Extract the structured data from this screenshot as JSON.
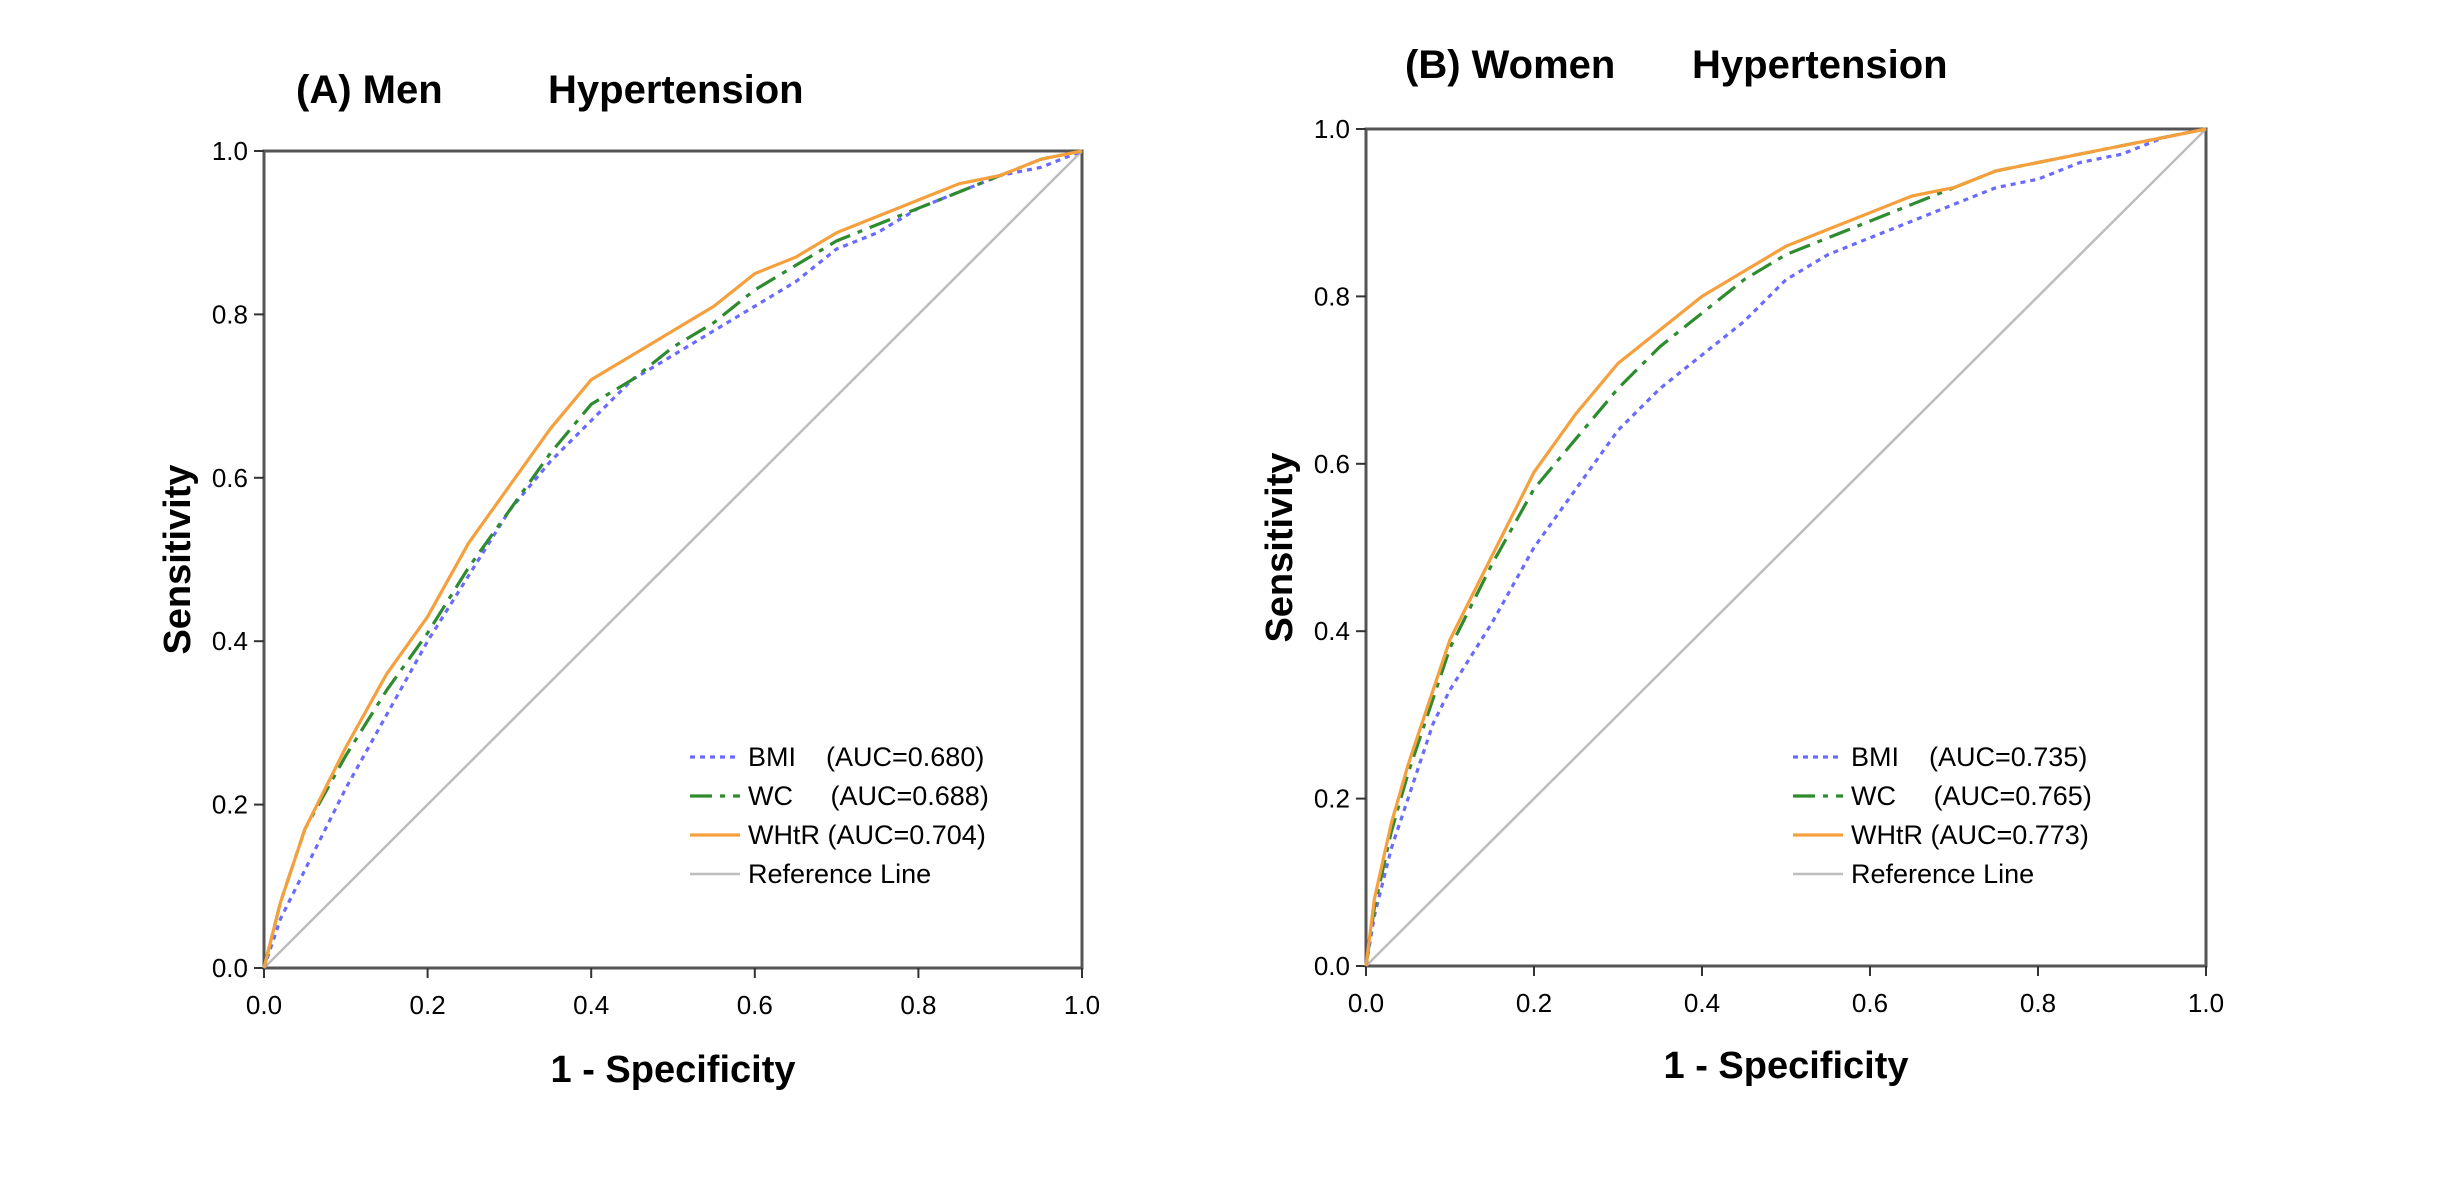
{
  "chart_data": [
    {
      "type": "line",
      "title_group": "(A) Men",
      "title_outcome": "Hypertension",
      "xlabel": "1 - Specificity",
      "ylabel": "Sensitivity",
      "xlim": [
        0,
        1
      ],
      "ylim": [
        0,
        1
      ],
      "xticks": [
        "0.0",
        "0.2",
        "0.4",
        "0.6",
        "0.8",
        "1.0"
      ],
      "yticks": [
        "0.0",
        "0.2",
        "0.4",
        "0.6",
        "0.8",
        "1.0"
      ],
      "legend_position": "bottom-right",
      "series": [
        {
          "name": "BMI",
          "legend": "BMI    (AUC=0.680)",
          "color": "#6a6aff",
          "dash": "dotted",
          "points": [
            [
              0,
              0
            ],
            [
              0.02,
              0.06
            ],
            [
              0.05,
              0.12
            ],
            [
              0.1,
              0.22
            ],
            [
              0.15,
              0.31
            ],
            [
              0.2,
              0.4
            ],
            [
              0.25,
              0.48
            ],
            [
              0.3,
              0.56
            ],
            [
              0.35,
              0.62
            ],
            [
              0.4,
              0.67
            ],
            [
              0.45,
              0.72
            ],
            [
              0.5,
              0.75
            ],
            [
              0.55,
              0.78
            ],
            [
              0.6,
              0.81
            ],
            [
              0.65,
              0.84
            ],
            [
              0.7,
              0.88
            ],
            [
              0.75,
              0.9
            ],
            [
              0.8,
              0.93
            ],
            [
              0.85,
              0.95
            ],
            [
              0.9,
              0.97
            ],
            [
              0.95,
              0.98
            ],
            [
              1,
              1
            ]
          ]
        },
        {
          "name": "WC",
          "legend": "WC     (AUC=0.688)",
          "color": "#2e8b2e",
          "dash": "dashdot",
          "points": [
            [
              0,
              0
            ],
            [
              0.02,
              0.08
            ],
            [
              0.05,
              0.17
            ],
            [
              0.1,
              0.26
            ],
            [
              0.15,
              0.34
            ],
            [
              0.2,
              0.41
            ],
            [
              0.25,
              0.49
            ],
            [
              0.3,
              0.56
            ],
            [
              0.35,
              0.63
            ],
            [
              0.4,
              0.69
            ],
            [
              0.45,
              0.72
            ],
            [
              0.5,
              0.76
            ],
            [
              0.55,
              0.79
            ],
            [
              0.6,
              0.83
            ],
            [
              0.65,
              0.86
            ],
            [
              0.7,
              0.89
            ],
            [
              0.75,
              0.91
            ],
            [
              0.8,
              0.93
            ],
            [
              0.85,
              0.95
            ],
            [
              0.9,
              0.97
            ],
            [
              0.95,
              0.99
            ],
            [
              1,
              1
            ]
          ]
        },
        {
          "name": "WHtR",
          "legend": "WHtR (AUC=0.704)",
          "color": "#f5a03c",
          "dash": "solid",
          "points": [
            [
              0,
              0
            ],
            [
              0.02,
              0.08
            ],
            [
              0.05,
              0.17
            ],
            [
              0.1,
              0.27
            ],
            [
              0.15,
              0.36
            ],
            [
              0.2,
              0.43
            ],
            [
              0.25,
              0.52
            ],
            [
              0.3,
              0.59
            ],
            [
              0.35,
              0.66
            ],
            [
              0.4,
              0.72
            ],
            [
              0.45,
              0.75
            ],
            [
              0.5,
              0.78
            ],
            [
              0.55,
              0.81
            ],
            [
              0.6,
              0.85
            ],
            [
              0.65,
              0.87
            ],
            [
              0.7,
              0.9
            ],
            [
              0.75,
              0.92
            ],
            [
              0.8,
              0.94
            ],
            [
              0.85,
              0.96
            ],
            [
              0.9,
              0.97
            ],
            [
              0.95,
              0.99
            ],
            [
              1,
              1
            ]
          ]
        },
        {
          "name": "Reference Line",
          "legend": "Reference Line",
          "color": "#bdbdbd",
          "dash": "solid",
          "points": [
            [
              0,
              0
            ],
            [
              1,
              1
            ]
          ]
        }
      ]
    },
    {
      "type": "line",
      "title_group": "(B) Women",
      "title_outcome": "Hypertension",
      "xlabel": "1 - Specificity",
      "ylabel": "Sensitivity",
      "xlim": [
        0,
        1
      ],
      "ylim": [
        0,
        1
      ],
      "xticks": [
        "0.0",
        "0.2",
        "0.4",
        "0.6",
        "0.8",
        "1.0"
      ],
      "yticks": [
        "0.0",
        "0.2",
        "0.4",
        "0.6",
        "0.8",
        "1.0"
      ],
      "legend_position": "bottom-right",
      "series": [
        {
          "name": "BMI",
          "legend": "BMI    (AUC=0.735)",
          "color": "#6a6aff",
          "dash": "dotted",
          "points": [
            [
              0,
              0
            ],
            [
              0.01,
              0.06
            ],
            [
              0.03,
              0.14
            ],
            [
              0.05,
              0.2
            ],
            [
              0.08,
              0.29
            ],
            [
              0.1,
              0.33
            ],
            [
              0.15,
              0.41
            ],
            [
              0.2,
              0.5
            ],
            [
              0.25,
              0.57
            ],
            [
              0.3,
              0.64
            ],
            [
              0.35,
              0.69
            ],
            [
              0.4,
              0.73
            ],
            [
              0.45,
              0.77
            ],
            [
              0.5,
              0.82
            ],
            [
              0.55,
              0.85
            ],
            [
              0.6,
              0.87
            ],
            [
              0.65,
              0.89
            ],
            [
              0.7,
              0.91
            ],
            [
              0.75,
              0.93
            ],
            [
              0.8,
              0.94
            ],
            [
              0.85,
              0.96
            ],
            [
              0.9,
              0.97
            ],
            [
              0.95,
              0.99
            ],
            [
              1,
              1
            ]
          ]
        },
        {
          "name": "WC",
          "legend": "WC     (AUC=0.765)",
          "color": "#2e8b2e",
          "dash": "dashdot",
          "points": [
            [
              0,
              0
            ],
            [
              0.01,
              0.07
            ],
            [
              0.03,
              0.16
            ],
            [
              0.05,
              0.23
            ],
            [
              0.08,
              0.32
            ],
            [
              0.1,
              0.38
            ],
            [
              0.15,
              0.48
            ],
            [
              0.2,
              0.57
            ],
            [
              0.25,
              0.63
            ],
            [
              0.3,
              0.69
            ],
            [
              0.35,
              0.74
            ],
            [
              0.4,
              0.78
            ],
            [
              0.45,
              0.82
            ],
            [
              0.5,
              0.85
            ],
            [
              0.55,
              0.87
            ],
            [
              0.6,
              0.89
            ],
            [
              0.65,
              0.91
            ],
            [
              0.7,
              0.93
            ],
            [
              0.75,
              0.95
            ],
            [
              0.8,
              0.96
            ],
            [
              0.85,
              0.97
            ],
            [
              0.9,
              0.98
            ],
            [
              0.95,
              0.99
            ],
            [
              1,
              1
            ]
          ]
        },
        {
          "name": "WHtR",
          "legend": "WHtR (AUC=0.773)",
          "color": "#f5a03c",
          "dash": "solid",
          "points": [
            [
              0,
              0
            ],
            [
              0.01,
              0.08
            ],
            [
              0.03,
              0.17
            ],
            [
              0.05,
              0.24
            ],
            [
              0.08,
              0.33
            ],
            [
              0.1,
              0.39
            ],
            [
              0.15,
              0.49
            ],
            [
              0.2,
              0.59
            ],
            [
              0.25,
              0.66
            ],
            [
              0.3,
              0.72
            ],
            [
              0.35,
              0.76
            ],
            [
              0.4,
              0.8
            ],
            [
              0.45,
              0.83
            ],
            [
              0.5,
              0.86
            ],
            [
              0.55,
              0.88
            ],
            [
              0.6,
              0.9
            ],
            [
              0.65,
              0.92
            ],
            [
              0.7,
              0.93
            ],
            [
              0.75,
              0.95
            ],
            [
              0.8,
              0.96
            ],
            [
              0.85,
              0.97
            ],
            [
              0.9,
              0.98
            ],
            [
              0.95,
              0.99
            ],
            [
              1,
              1
            ]
          ]
        },
        {
          "name": "Reference Line",
          "legend": "Reference Line",
          "color": "#bdbdbd",
          "dash": "solid",
          "points": [
            [
              0,
              0
            ],
            [
              1,
              1
            ]
          ]
        }
      ]
    }
  ]
}
